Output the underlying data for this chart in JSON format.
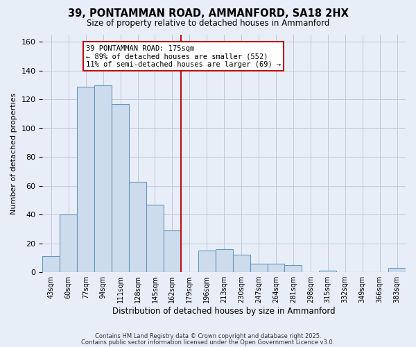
{
  "title": "39, PONTAMMAN ROAD, AMMANFORD, SA18 2HX",
  "subtitle": "Size of property relative to detached houses in Ammanford",
  "xlabel": "Distribution of detached houses by size in Ammanford",
  "ylabel": "Number of detached properties",
  "bin_labels": [
    "43sqm",
    "60sqm",
    "77sqm",
    "94sqm",
    "111sqm",
    "128sqm",
    "145sqm",
    "162sqm",
    "179sqm",
    "196sqm",
    "213sqm",
    "230sqm",
    "247sqm",
    "264sqm",
    "281sqm",
    "298sqm",
    "315sqm",
    "332sqm",
    "349sqm",
    "366sqm",
    "383sqm"
  ],
  "bin_values": [
    11,
    40,
    129,
    130,
    117,
    63,
    47,
    29,
    0,
    15,
    16,
    12,
    6,
    6,
    5,
    0,
    1,
    0,
    0,
    0,
    3
  ],
  "bar_color": "#cddcec",
  "bar_edge_color": "#6699bb",
  "vline_color": "#bb1111",
  "annotation_line1": "39 PONTAMMAN ROAD: 175sqm",
  "annotation_line2": "← 89% of detached houses are smaller (552)",
  "annotation_line3": "11% of semi-detached houses are larger (69) →",
  "annotation_box_color": "#ffffff",
  "annotation_box_edge": "#bb1111",
  "ylim": [
    0,
    165
  ],
  "yticks": [
    0,
    20,
    40,
    60,
    80,
    100,
    120,
    140,
    160
  ],
  "footer1": "Contains HM Land Registry data © Crown copyright and database right 2025.",
  "footer2": "Contains public sector information licensed under the Open Government Licence v3.0.",
  "background_color": "#e8eef8",
  "grid_color": "#c0c8d8"
}
